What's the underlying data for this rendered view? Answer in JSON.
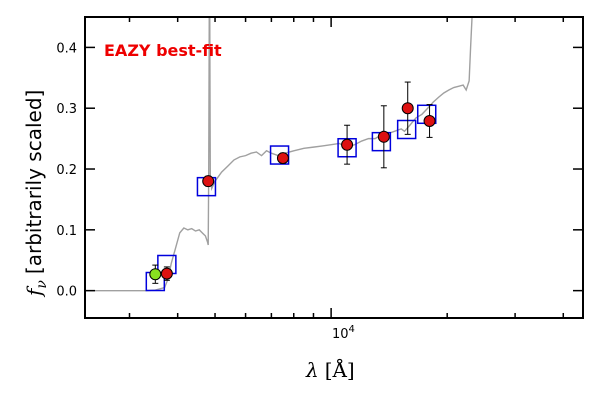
{
  "chart_data": {
    "type": "scatter",
    "annotation": "EAZY best-fit",
    "xlabel_symbol": "λ",
    "xlabel_unit": "[Å]",
    "ylabel_symbol": "f",
    "ylabel_subscript": "ν",
    "ylabel_text": "[arbitrarily scaled]",
    "x_scale": "log",
    "xlim": [
      2300,
      45000
    ],
    "ylim": [
      -0.045,
      0.45
    ],
    "x_major_ticks": [
      {
        "value": 10000,
        "base": "10",
        "exp": "4"
      }
    ],
    "x_minor_ticks": [
      3000,
      4000,
      5000,
      6000,
      7000,
      8000,
      9000,
      20000,
      30000,
      40000
    ],
    "y_ticks": [
      {
        "value": 0.0,
        "label": "0.0"
      },
      {
        "value": 0.1,
        "label": "0.1"
      },
      {
        "value": 0.2,
        "label": "0.2"
      },
      {
        "value": 0.3,
        "label": "0.3"
      },
      {
        "value": 0.4,
        "label": "0.4"
      }
    ],
    "colors": {
      "template": "#a0a0a0",
      "model": "#0000dd",
      "observed": "#dd1111",
      "highlight": "#88e020",
      "annotation": "#ee0000",
      "error": "#000000"
    },
    "template_spectrum": [
      [
        2300,
        0.0
      ],
      [
        3300,
        0.0
      ],
      [
        3500,
        0.001
      ],
      [
        3600,
        0.003
      ],
      [
        3700,
        0.005
      ],
      [
        3780,
        0.02
      ],
      [
        3850,
        0.045
      ],
      [
        3950,
        0.07
      ],
      [
        4050,
        0.095
      ],
      [
        4150,
        0.103
      ],
      [
        4250,
        0.1
      ],
      [
        4350,
        0.102
      ],
      [
        4450,
        0.098
      ],
      [
        4550,
        0.1
      ],
      [
        4650,
        0.094
      ],
      [
        4720,
        0.09
      ],
      [
        4780,
        0.08
      ],
      [
        4800,
        0.075
      ],
      [
        4815,
        0.2
      ],
      [
        4830,
        0.45
      ],
      [
        4845,
        0.45
      ],
      [
        4860,
        0.19
      ],
      [
        4900,
        0.168
      ],
      [
        5000,
        0.18
      ],
      [
        5200,
        0.195
      ],
      [
        5400,
        0.205
      ],
      [
        5600,
        0.215
      ],
      [
        5800,
        0.22
      ],
      [
        6000,
        0.222
      ],
      [
        6200,
        0.226
      ],
      [
        6400,
        0.228
      ],
      [
        6600,
        0.222
      ],
      [
        6800,
        0.23
      ],
      [
        7000,
        0.226
      ],
      [
        7300,
        0.222
      ],
      [
        7600,
        0.226
      ],
      [
        8000,
        0.23
      ],
      [
        8500,
        0.234
      ],
      [
        9000,
        0.236
      ],
      [
        9500,
        0.238
      ],
      [
        10000,
        0.24
      ],
      [
        10500,
        0.242
      ],
      [
        11000,
        0.236
      ],
      [
        11500,
        0.24
      ],
      [
        12000,
        0.246
      ],
      [
        12500,
        0.25
      ],
      [
        13000,
        0.25
      ],
      [
        13500,
        0.256
      ],
      [
        14000,
        0.258
      ],
      [
        14600,
        0.262
      ],
      [
        15200,
        0.266
      ],
      [
        15500,
        0.262
      ],
      [
        16000,
        0.272
      ],
      [
        16600,
        0.284
      ],
      [
        17200,
        0.29
      ],
      [
        17800,
        0.3
      ],
      [
        18400,
        0.31
      ],
      [
        19000,
        0.318
      ],
      [
        19600,
        0.325
      ],
      [
        20200,
        0.33
      ],
      [
        20800,
        0.334
      ],
      [
        21400,
        0.336
      ],
      [
        22000,
        0.338
      ],
      [
        22400,
        0.33
      ],
      [
        22800,
        0.345
      ],
      [
        23000,
        0.4
      ],
      [
        23200,
        0.45
      ]
    ],
    "model_points": [
      {
        "x": 3500,
        "y": 0.015
      },
      {
        "x": 3750,
        "y": 0.043
      },
      {
        "x": 4750,
        "y": 0.171
      },
      {
        "x": 7350,
        "y": 0.223
      },
      {
        "x": 11000,
        "y": 0.235
      },
      {
        "x": 13500,
        "y": 0.245
      },
      {
        "x": 15700,
        "y": 0.265
      },
      {
        "x": 17700,
        "y": 0.29
      }
    ],
    "observed_points": [
      {
        "x": 3500,
        "y": 0.027,
        "err": 0.015,
        "color": "highlight"
      },
      {
        "x": 3750,
        "y": 0.028,
        "err": 0.011,
        "color": "observed"
      },
      {
        "x": 4800,
        "y": 0.18,
        "err": 0.008,
        "color": "observed"
      },
      {
        "x": 7500,
        "y": 0.218,
        "err": 0.008,
        "color": "observed"
      },
      {
        "x": 11000,
        "y": 0.24,
        "err": 0.032,
        "color": "observed"
      },
      {
        "x": 13700,
        "y": 0.253,
        "err": 0.051,
        "color": "observed"
      },
      {
        "x": 15800,
        "y": 0.3,
        "err": 0.043,
        "color": "observed"
      },
      {
        "x": 18000,
        "y": 0.279,
        "err": 0.027,
        "color": "observed"
      }
    ]
  }
}
